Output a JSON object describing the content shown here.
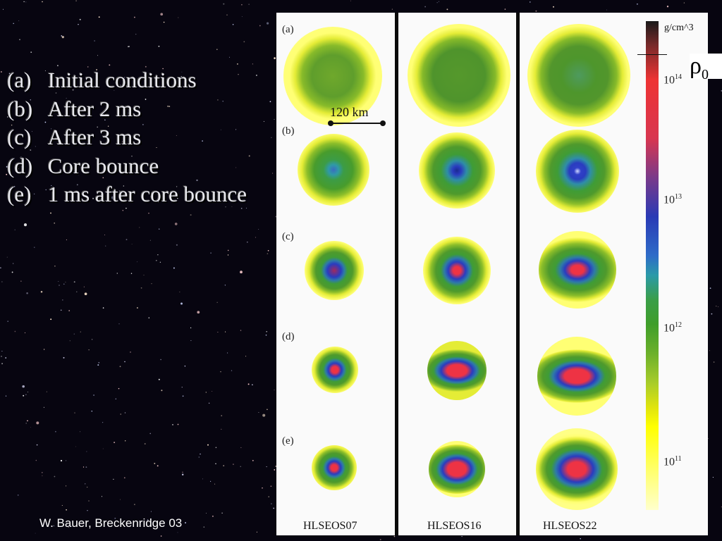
{
  "captions": [
    {
      "label": "(a)",
      "text": "Initial conditions"
    },
    {
      "label": "(b)",
      "text": "After 2 ms"
    },
    {
      "label": "(c)",
      "text": "After 3 ms"
    },
    {
      "label": "(d)",
      "text": "Core bounce"
    },
    {
      "label": "(e)",
      "text": "1 ms after core bounce"
    }
  ],
  "credit": "W. Bauer, Breckenridge 03",
  "figure": {
    "row_labels": [
      "(a)",
      "(b)",
      "(c)",
      "(d)",
      "(e)"
    ],
    "models": [
      "HLSEOS07",
      "HLSEOS16",
      "HLSEOS22"
    ],
    "scale_bar": "120 km",
    "colorbar": {
      "unit": "g/cm^3",
      "ticks": [
        {
          "base": "10",
          "exp": "14"
        },
        {
          "base": "10",
          "exp": "13"
        },
        {
          "base": "10",
          "exp": "12"
        },
        {
          "base": "10",
          "exp": "11"
        }
      ]
    },
    "rho_symbol": "ρ",
    "rho_subscript": "0"
  },
  "colors": {
    "background": "#070510",
    "yellow": "#ffff5a",
    "green": "#4c9a2a",
    "blue": "#2a3cbf",
    "red": "#ee3344"
  }
}
